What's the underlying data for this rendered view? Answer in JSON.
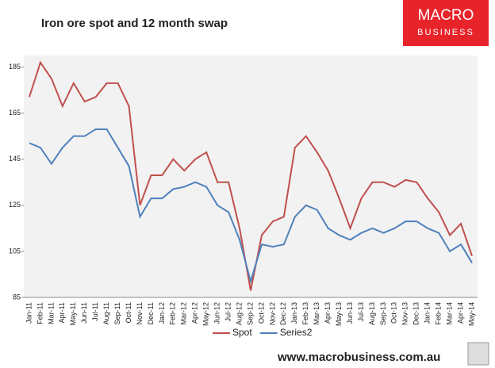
{
  "chart_data": {
    "type": "line",
    "title": "Iron ore spot and 12 month swap",
    "categories": [
      "Jan-11",
      "Feb-11",
      "Mar-11",
      "Apr-11",
      "May-11",
      "Jun-11",
      "Jul-11",
      "Aug-11",
      "Sep-11",
      "Oct-11",
      "Nov-11",
      "Dec-11",
      "Jan-12",
      "Feb-12",
      "Mar-12",
      "Apr-12",
      "May-12",
      "Jun-12",
      "Jul-12",
      "Aug-12",
      "Sep-12",
      "Oct-12",
      "Nov-12",
      "Dec-12",
      "Jan-13",
      "Feb-13",
      "Mar-13",
      "Apr-13",
      "May-13",
      "Jun-13",
      "Jul-13",
      "Aug-13",
      "Sep-13",
      "Oct-13",
      "Nov-13",
      "Dec-13",
      "Jan-14",
      "Feb-14",
      "Mar-14",
      "Apr-14",
      "May-14"
    ],
    "series": [
      {
        "name": "Spot",
        "color": "#c0504d",
        "values": [
          172,
          187,
          180,
          168,
          178,
          170,
          172,
          178,
          178,
          168,
          125,
          138,
          138,
          145,
          140,
          145,
          148,
          135,
          135,
          115,
          88,
          112,
          118,
          120,
          150,
          155,
          148,
          140,
          128,
          115,
          128,
          135,
          135,
          133,
          136,
          135,
          128,
          122,
          112,
          117,
          103
        ]
      },
      {
        "name": "Series2",
        "color": "#4f81bd",
        "values": [
          152,
          150,
          143,
          150,
          155,
          155,
          158,
          158,
          150,
          142,
          120,
          128,
          128,
          132,
          133,
          135,
          133,
          125,
          122,
          110,
          92,
          108,
          107,
          108,
          120,
          125,
          123,
          115,
          112,
          110,
          113,
          115,
          113,
          115,
          118,
          118,
          115,
          113,
          105,
          108,
          100
        ]
      }
    ],
    "ylim": [
      85,
      190
    ],
    "yticks": [
      85,
      105,
      125,
      145,
      165,
      185
    ],
    "grid": false,
    "legend": "bottom"
  },
  "logo": {
    "line1": "MACRO",
    "line2": "BUSINESS"
  },
  "footer": {
    "url": "www.macrobusiness.com.au"
  }
}
